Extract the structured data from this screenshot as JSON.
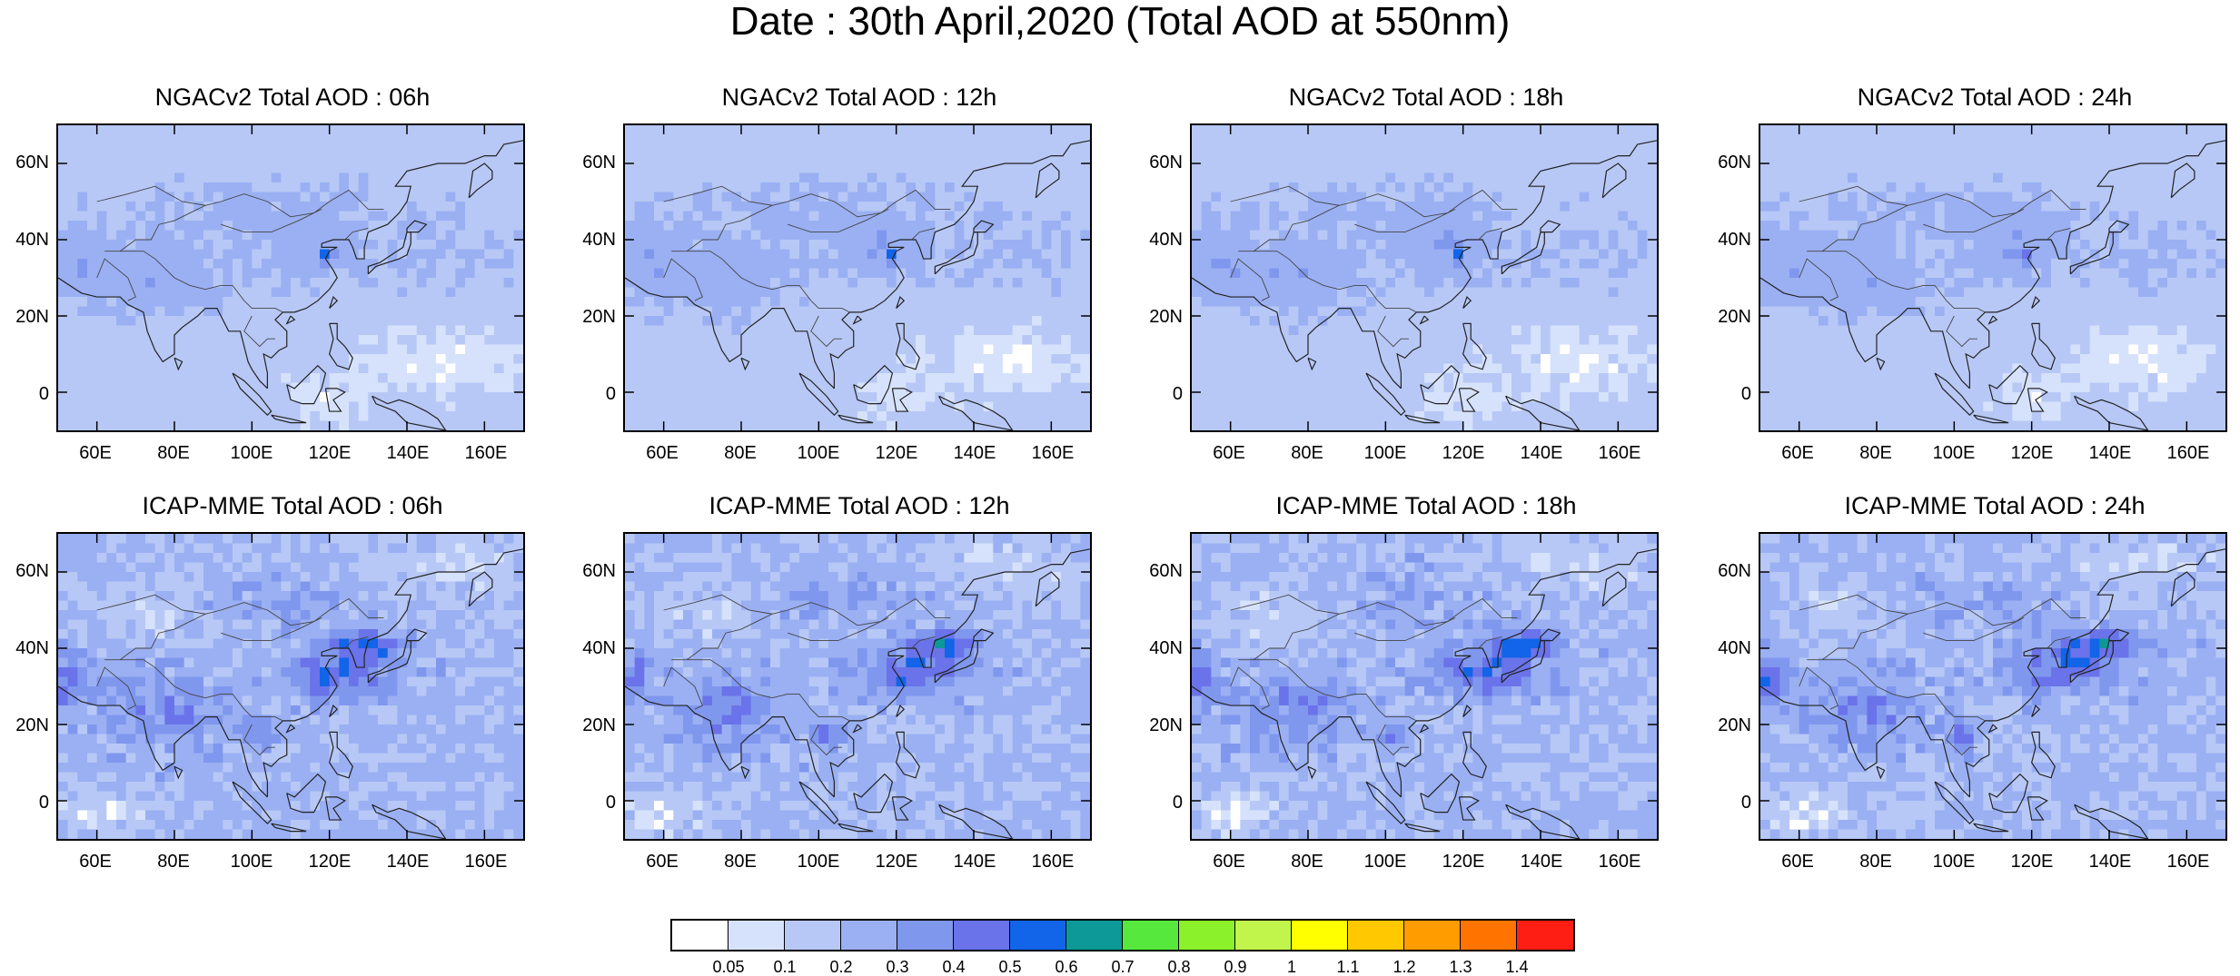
{
  "figure": {
    "title": "Date : 30th April,2020 (Total AOD at 550nm)"
  },
  "panels": [
    {
      "title": "NGACv2 Total AOD : 06h",
      "model": "NGACv2"
    },
    {
      "title": "NGACv2 Total AOD : 12h",
      "model": "NGACv2"
    },
    {
      "title": "NGACv2 Total AOD : 18h",
      "model": "NGACv2"
    },
    {
      "title": "NGACv2 Total AOD : 24h",
      "model": "NGACv2"
    },
    {
      "title": "ICAP-MME Total AOD : 06h",
      "model": "ICAP-MME"
    },
    {
      "title": "ICAP-MME Total AOD : 12h",
      "model": "ICAP-MME"
    },
    {
      "title": "ICAP-MME Total AOD : 18h",
      "model": "ICAP-MME"
    },
    {
      "title": "ICAP-MME Total AOD : 24h",
      "model": "ICAP-MME"
    }
  ],
  "axes": {
    "lon_ticks": [
      "60E",
      "80E",
      "100E",
      "120E",
      "140E",
      "160E"
    ],
    "lat_ticks": [
      "60N",
      "40N",
      "20N",
      "0"
    ]
  },
  "colorbar": {
    "colors": [
      "#ffffff",
      "#d6e2fb",
      "#b7c8f6",
      "#9ab0f3",
      "#8097ee",
      "#6a73e9",
      "#1264e8",
      "#0c9998",
      "#56e83d",
      "#8af12a",
      "#c2f54c",
      "#ffff00",
      "#ffc800",
      "#ff9c00",
      "#ff7400",
      "#ff1e14"
    ],
    "labels": [
      "0.05",
      "0.1",
      "0.2",
      "0.3",
      "0.4",
      "0.5",
      "0.6",
      "0.7",
      "0.8",
      "0.9",
      "1",
      "1.1",
      "1.2",
      "1.3",
      "1.4"
    ]
  }
}
